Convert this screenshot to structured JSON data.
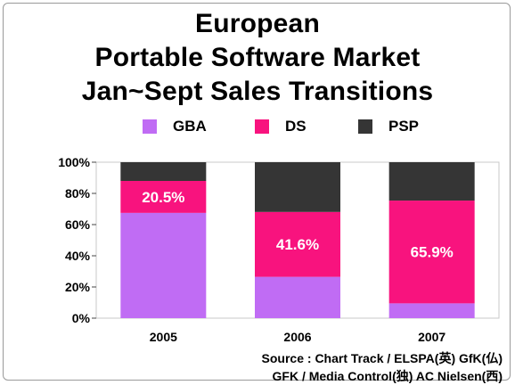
{
  "title_lines": [
    "European",
    "Portable Software Market",
    "Jan~Sept Sales Transitions"
  ],
  "source_lines": [
    "Source : Chart Track / ELSPA(英) GfK(仏)",
    "GFK / Media Control(独) AC Nielsen(西)"
  ],
  "colors": {
    "GBA": "#c06cf4",
    "DS": "#f8137e",
    "PSP": "#353535"
  },
  "chart_data": {
    "type": "bar",
    "stacked": true,
    "categories": [
      "2005",
      "2006",
      "2007"
    ],
    "series": [
      {
        "name": "GBA",
        "values": [
          67.5,
          26.5,
          9.5
        ]
      },
      {
        "name": "DS",
        "values": [
          20.5,
          41.6,
          65.9
        ]
      },
      {
        "name": "PSP",
        "values": [
          12.0,
          31.9,
          24.6
        ]
      }
    ],
    "data_labels": [
      {
        "category": "2005",
        "series": "DS",
        "text": "20.5%"
      },
      {
        "category": "2006",
        "series": "DS",
        "text": "41.6%"
      },
      {
        "category": "2007",
        "series": "DS",
        "text": "65.9%"
      }
    ],
    "yticks": [
      "0%",
      "20%",
      "40%",
      "60%",
      "80%",
      "100%"
    ],
    "ylim": [
      0,
      100
    ],
    "legend": "top",
    "grid": false
  }
}
